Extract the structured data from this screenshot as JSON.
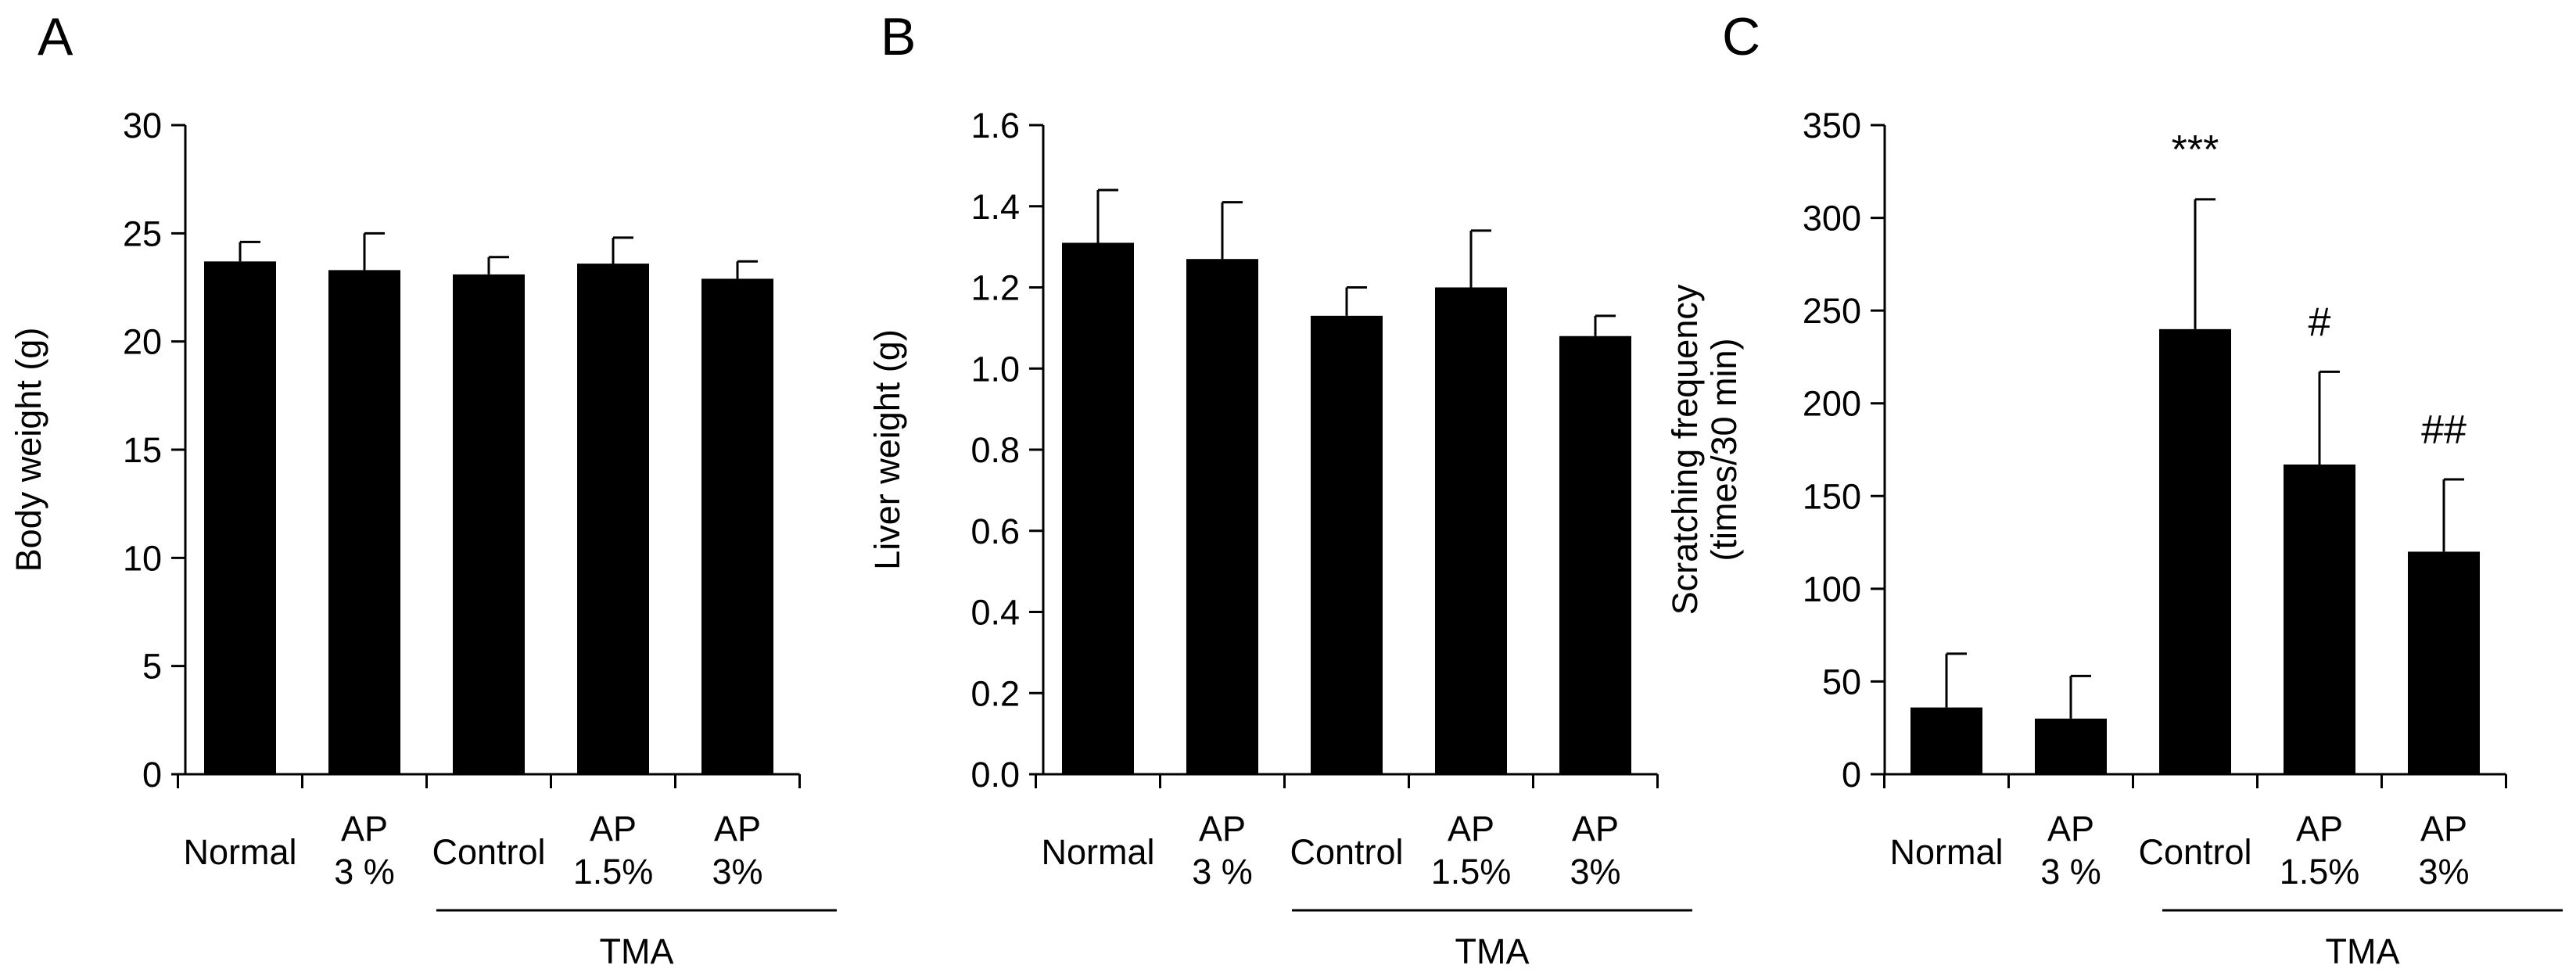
{
  "chart_data": [
    {
      "type": "bar",
      "panel": "A",
      "ylabel": [
        "Body weight (g)"
      ],
      "ylim": [
        0,
        30
      ],
      "yticks": [
        "0",
        "5",
        "10",
        "15",
        "20",
        "25",
        "30"
      ],
      "categories": [
        [
          "Normal"
        ],
        [
          "AP",
          "3 %"
        ],
        [
          "Control"
        ],
        [
          "AP",
          "1.5%"
        ],
        [
          "AP",
          "3%"
        ]
      ],
      "values": [
        23.7,
        23.3,
        23.1,
        23.6,
        22.9
      ],
      "errors": [
        0.9,
        1.7,
        0.8,
        1.2,
        0.8
      ],
      "annotations": [
        "",
        "",
        "",
        "",
        ""
      ],
      "group_label": "TMA"
    },
    {
      "type": "bar",
      "panel": "B",
      "ylabel": [
        "Liver weight (g)"
      ],
      "ylim": [
        0,
        1.6
      ],
      "yticks": [
        "0.0",
        "0.2",
        "0.4",
        "0.6",
        "0.8",
        "1.0",
        "1.2",
        "1.4",
        "1.6"
      ],
      "categories": [
        [
          "Normal"
        ],
        [
          "AP",
          "3 %"
        ],
        [
          "Control"
        ],
        [
          "AP",
          "1.5%"
        ],
        [
          "AP",
          "3%"
        ]
      ],
      "values": [
        1.31,
        1.27,
        1.13,
        1.2,
        1.08
      ],
      "errors": [
        0.13,
        0.14,
        0.07,
        0.14,
        0.05
      ],
      "annotations": [
        "",
        "",
        "",
        "",
        ""
      ],
      "group_label": "TMA"
    },
    {
      "type": "bar",
      "panel": "C",
      "ylabel": [
        "Scratching frequency",
        "(times/30 min)"
      ],
      "ylim": [
        0,
        350
      ],
      "yticks": [
        "0",
        "50",
        "100",
        "150",
        "200",
        "250",
        "300",
        "350"
      ],
      "categories": [
        [
          "Normal"
        ],
        [
          "AP",
          "3 %"
        ],
        [
          "Control"
        ],
        [
          "AP",
          "1.5%"
        ],
        [
          "AP",
          "3%"
        ]
      ],
      "values": [
        36,
        30,
        240,
        167,
        120
      ],
      "errors": [
        29,
        23,
        70,
        50,
        39
      ],
      "annotations": [
        "",
        "",
        "***",
        "#",
        "##"
      ],
      "group_label": "TMA"
    }
  ]
}
